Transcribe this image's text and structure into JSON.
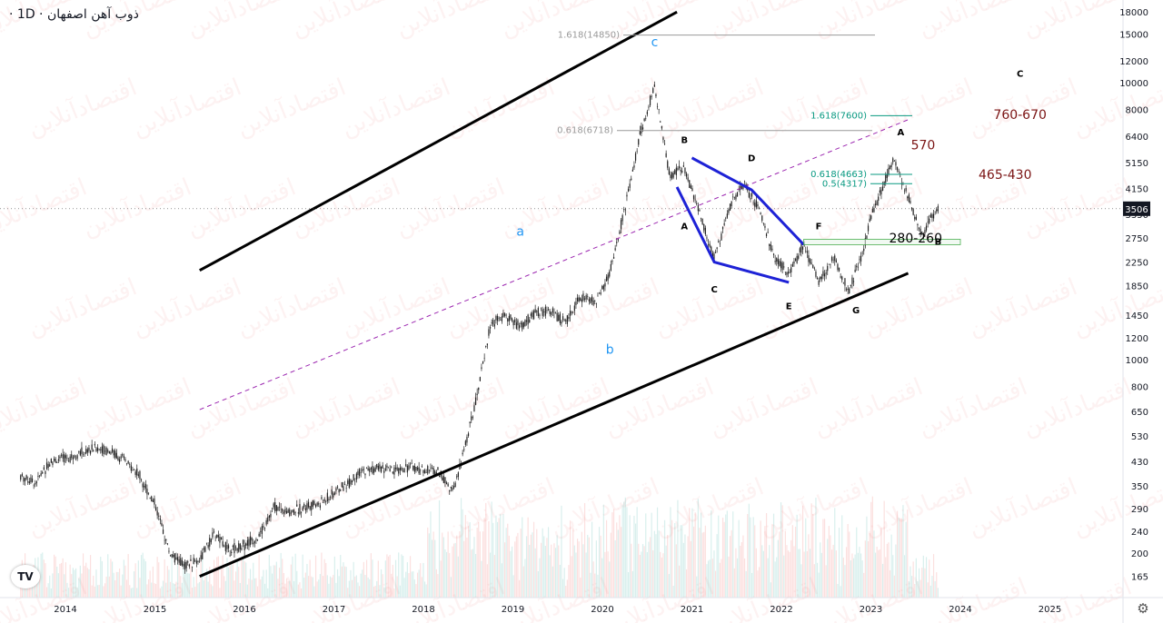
{
  "header": {
    "title": "ذوب آهن اصفهان · 1D ·"
  },
  "branding": {
    "logo_text": "TV",
    "watermark": "اقتصادآنلاین"
  },
  "chart_data": {
    "type": "candlestick",
    "title": "ذوب آهن اصفهان · 1D ·",
    "y_scale": "log",
    "ylim": [
      150,
      18500
    ],
    "xlim": [
      "2013-07",
      "2025-12"
    ],
    "y_ticks": [
      18000,
      15000,
      12000,
      10000,
      8000,
      6400,
      5150,
      4150,
      3350,
      2750,
      2250,
      1850,
      1450,
      1200,
      1000,
      800,
      650,
      530,
      430,
      350,
      290,
      240,
      200,
      165
    ],
    "x_ticks": [
      "2014",
      "2015",
      "2016",
      "2017",
      "2018",
      "2019",
      "2020",
      "2021",
      "2022",
      "2023",
      "2024",
      "2025"
    ],
    "last_price": "3506",
    "grid": false,
    "price_path": [
      [
        "2013-07",
        380
      ],
      [
        "2013-09",
        360
      ],
      [
        "2013-11",
        430
      ],
      [
        "2014-01",
        440
      ],
      [
        "2014-03",
        460
      ],
      [
        "2014-05",
        480
      ],
      [
        "2014-07",
        470
      ],
      [
        "2014-09",
        430
      ],
      [
        "2014-11",
        380
      ],
      [
        "2015-01",
        300
      ],
      [
        "2015-03",
        200
      ],
      [
        "2015-05",
        180
      ],
      [
        "2015-07",
        190
      ],
      [
        "2015-09",
        235
      ],
      [
        "2015-11",
        205
      ],
      [
        "2016-01",
        215
      ],
      [
        "2016-03",
        230
      ],
      [
        "2016-05",
        295
      ],
      [
        "2016-07",
        280
      ],
      [
        "2016-09",
        295
      ],
      [
        "2016-11",
        300
      ],
      [
        "2017-01",
        330
      ],
      [
        "2017-03",
        360
      ],
      [
        "2017-05",
        395
      ],
      [
        "2017-07",
        405
      ],
      [
        "2017-09",
        395
      ],
      [
        "2017-11",
        410
      ],
      [
        "2018-01",
        400
      ],
      [
        "2018-03",
        395
      ],
      [
        "2018-05",
        330
      ],
      [
        "2018-06",
        420
      ],
      [
        "2018-08",
        700
      ],
      [
        "2018-10",
        1350
      ],
      [
        "2018-12",
        1450
      ],
      [
        "2019-02",
        1300
      ],
      [
        "2019-04",
        1480
      ],
      [
        "2019-06",
        1500
      ],
      [
        "2019-08",
        1350
      ],
      [
        "2019-10",
        1700
      ],
      [
        "2019-12",
        1600
      ],
      [
        "2020-02",
        2050
      ],
      [
        "2020-04",
        3500
      ],
      [
        "2020-06",
        6400
      ],
      [
        "2020-08",
        9700
      ],
      [
        "2020-09",
        6700
      ],
      [
        "2020-10",
        4600
      ],
      [
        "2020-12",
        4900
      ],
      [
        "2021-02",
        3400
      ],
      [
        "2021-04",
        2300
      ],
      [
        "2021-06",
        3500
      ],
      [
        "2021-08",
        4300
      ],
      [
        "2021-10",
        3500
      ],
      [
        "2021-12",
        2350
      ],
      [
        "2022-02",
        2050
      ],
      [
        "2022-04",
        2600
      ],
      [
        "2022-06",
        1900
      ],
      [
        "2022-08",
        2350
      ],
      [
        "2022-10",
        1750
      ],
      [
        "2022-12",
        2500
      ],
      [
        "2023-01",
        3300
      ],
      [
        "2023-03",
        4500
      ],
      [
        "2023-04",
        5350
      ],
      [
        "2023-05",
        4600
      ],
      [
        "2023-07",
        3200
      ],
      [
        "2023-08",
        2800
      ],
      [
        "2023-09",
        3300
      ],
      [
        "2023-10",
        3506
      ]
    ],
    "wave_labels": [
      {
        "text": "a",
        "x": "2019-02",
        "y": 2800,
        "color": "#2196f3"
      },
      {
        "text": "b",
        "x": "2020-02",
        "y": 1050,
        "color": "#2196f3"
      },
      {
        "text": "c",
        "x": "2020-08",
        "y": 13500,
        "color": "#2196f3"
      },
      {
        "text": "A",
        "x": "2020-12",
        "y": 2950,
        "color": "#000000"
      },
      {
        "text": "B",
        "x": "2020-12",
        "y": 6050,
        "color": "#000000"
      },
      {
        "text": "C",
        "x": "2021-04",
        "y": 1750,
        "color": "#000000"
      },
      {
        "text": "D",
        "x": "2021-09",
        "y": 5200,
        "color": "#000000"
      },
      {
        "text": "E",
        "x": "2022-02",
        "y": 1520,
        "color": "#000000"
      },
      {
        "text": "F",
        "x": "2022-06",
        "y": 2950,
        "color": "#000000"
      },
      {
        "text": "G",
        "x": "2022-11",
        "y": 1470,
        "color": "#000000"
      },
      {
        "text": "A",
        "x": "2023-05",
        "y": 6450,
        "color": "#000000"
      },
      {
        "text": "B",
        "x": "2023-10",
        "y": 2600,
        "color": "#000000"
      },
      {
        "text": "C",
        "x": "2024-09",
        "y": 10500,
        "color": "#000000"
      }
    ],
    "fib_levels": [
      {
        "label": "1.618(14850)",
        "value": 14850,
        "color": "#999999"
      },
      {
        "label": "0.618(6718)",
        "value": 6718,
        "color": "#999999"
      },
      {
        "label": "1.618(7600)",
        "value": 7600,
        "color": "#089981"
      },
      {
        "label": "0.618(4663)",
        "value": 4663,
        "color": "#089981"
      },
      {
        "label": "0.5(4317)",
        "value": 4317,
        "color": "#089981"
      }
    ],
    "target_annotations": [
      {
        "text": "760-670",
        "x": "2024-09",
        "y": 7400,
        "color": "#7b1515"
      },
      {
        "text": "570",
        "x": "2023-08",
        "y": 5750,
        "color": "#7b1515"
      },
      {
        "text": "465-430",
        "x": "2024-07",
        "y": 4500,
        "color": "#7b1515"
      },
      {
        "text": "280-260",
        "x": "2023-07",
        "y": 2650,
        "color": "#000000"
      }
    ],
    "channel": {
      "upper": [
        [
          "2015-07",
          2100
        ],
        [
          "2020-11",
          18000
        ]
      ],
      "lower": [
        [
          "2015-07",
          165
        ],
        [
          "2023-06",
          2050
        ]
      ],
      "median": [
        [
          "2015-07",
          660
        ],
        [
          "2023-06",
          7350
        ]
      ]
    },
    "triangle": {
      "upper": [
        [
          "2021-01",
          5350
        ],
        [
          "2021-09",
          4100
        ],
        [
          "2022-04",
          2600
        ]
      ],
      "lower": [
        [
          "2020-11",
          4200
        ],
        [
          "2021-04",
          2250
        ],
        [
          "2022-02",
          1900
        ]
      ]
    },
    "support_box": {
      "from": "2022-04",
      "to": "2024-01",
      "low": 2600,
      "high": 2720
    }
  }
}
